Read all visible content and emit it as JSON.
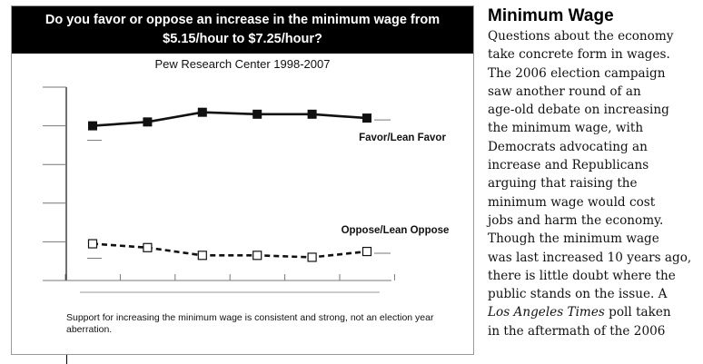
{
  "chart": {
    "header_lines": [
      "Do you favor or oppose an increase in the minimum wage from",
      "$5.15/hour to $7.25/hour?"
    ],
    "source": "Pew Research Center 1998-2007",
    "note": "Support for increasing the minimum wage is consistent and strong, not an election year aberration."
  },
  "chart_data": {
    "type": "line",
    "title": "Do you favor or oppose an increase in the minimum wage from $5.15/hour to $7.25/hour?",
    "subtitle": "Pew Research Center 1998-2007",
    "x": [
      1,
      2,
      3,
      4,
      5,
      6
    ],
    "ylim": [
      0,
      100
    ],
    "grid": false,
    "series": [
      {
        "name": "Favor/Lean Favor",
        "values": [
          80,
          82,
          87,
          86,
          86,
          84
        ],
        "style": "solid",
        "marker": "filled-square",
        "color": "#111111"
      },
      {
        "name": "Oppose/Lean Oppose",
        "values": [
          19,
          17,
          13,
          13,
          12,
          15
        ],
        "style": "dashed",
        "marker": "open-square",
        "color": "#111111"
      }
    ]
  },
  "article": {
    "title": "Minimum Wage",
    "lines": [
      {
        "text": "Questions about the economy"
      },
      {
        "text": "take concrete form in wages."
      },
      {
        "text": "The 2006 election campaign"
      },
      {
        "text": "saw another round of an"
      },
      {
        "text": "age-old debate on increasing"
      },
      {
        "text": "the minimum wage, with"
      },
      {
        "text": "Democrats advocating an"
      },
      {
        "text": "increase and Republicans"
      },
      {
        "text": "arguing that raising the"
      },
      {
        "text": "minimum wage would cost"
      },
      {
        "text": "jobs and harm the economy."
      },
      {
        "text": "Though the minimum wage"
      },
      {
        "text": "was last increased 10 years ago,"
      },
      {
        "text": "there is little doubt where the"
      },
      {
        "text": "public stands on the issue. A"
      },
      {
        "text": "Los Angeles Times",
        "italic": true,
        "rest": " poll taken"
      },
      {
        "text": "in the aftermath of the 2006"
      }
    ]
  }
}
